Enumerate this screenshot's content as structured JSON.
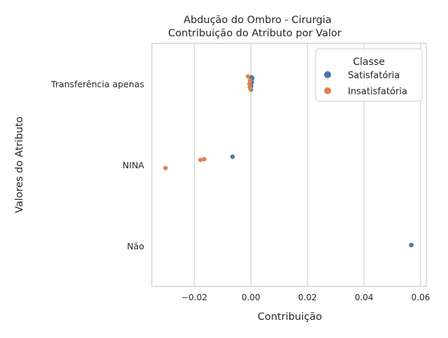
{
  "chart_data": {
    "type": "scatter",
    "title_line1": "Abdução do Ombro - Cirurgia",
    "title_line2": "Contribuição do Atributo por Valor",
    "xlabel": "Contribuição",
    "ylabel": "Valores do Atributo",
    "xlim": [
      -0.035,
      0.062
    ],
    "xticks": [
      {
        "value": -0.02,
        "label": "−0.02"
      },
      {
        "value": 0.0,
        "label": "0.00"
      },
      {
        "value": 0.02,
        "label": "0.02"
      },
      {
        "value": 0.04,
        "label": "0.04"
      },
      {
        "value": 0.06,
        "label": "0.06"
      }
    ],
    "categories": [
      "Transferência apenas",
      "NINA",
      "Não"
    ],
    "grid": true,
    "legend": {
      "title": "Classe",
      "placement": "top-right"
    },
    "series": [
      {
        "name": "Satisfatória",
        "color": "#4c72b0",
        "points": [
          {
            "category": "Transferência apenas",
            "x": 0.0002,
            "jitter": -0.08
          },
          {
            "category": "Transferência apenas",
            "x": 0.0005,
            "jitter": -0.07
          },
          {
            "category": "Transferência apenas",
            "x": 0.0003,
            "jitter": -0.02
          },
          {
            "category": "Transferência apenas",
            "x": 0.0001,
            "jitter": 0.03
          },
          {
            "category": "Transferência apenas",
            "x": 0.0,
            "jitter": 0.07
          },
          {
            "category": "NINA",
            "x": -0.0065,
            "jitter": -0.1
          },
          {
            "category": "Não",
            "x": 0.0567,
            "jitter": -0.01
          }
        ]
      },
      {
        "name": "Insatisfatória",
        "color": "#dd8452",
        "points": [
          {
            "category": "Transferência apenas",
            "x": -0.001,
            "jitter": -0.09
          },
          {
            "category": "Transferência apenas",
            "x": -0.0003,
            "jitter": -0.04
          },
          {
            "category": "Transferência apenas",
            "x": -0.0005,
            "jitter": 0.0
          },
          {
            "category": "Transferência apenas",
            "x": -0.0004,
            "jitter": 0.04
          },
          {
            "category": "Transferência apenas",
            "x": -0.0002,
            "jitter": 0.06
          },
          {
            "category": "NINA",
            "x": -0.0165,
            "jitter": -0.07
          },
          {
            "category": "NINA",
            "x": -0.0178,
            "jitter": -0.06
          },
          {
            "category": "NINA",
            "x": -0.0302,
            "jitter": 0.04
          }
        ]
      }
    ]
  }
}
